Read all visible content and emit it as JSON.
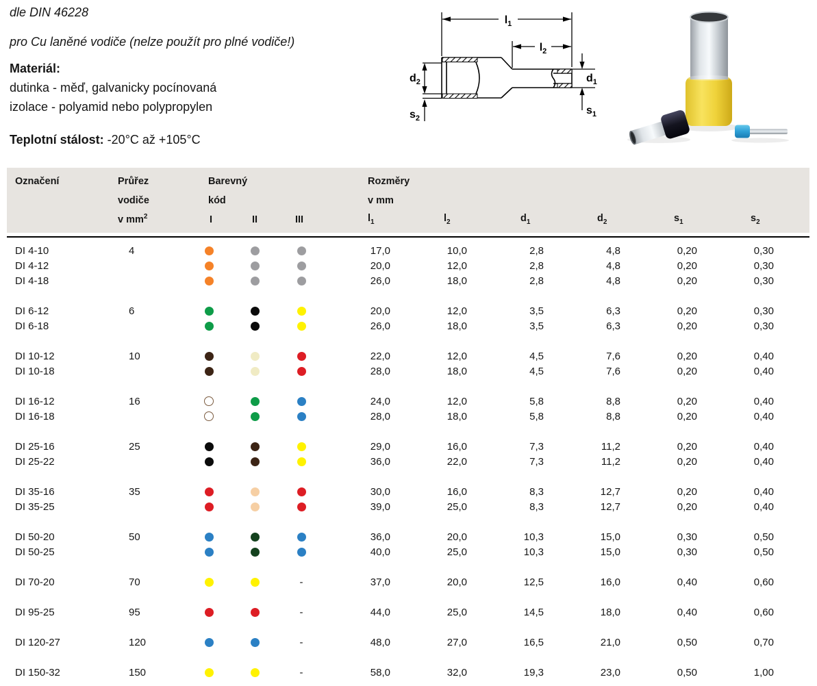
{
  "page": {
    "din_note": "dle DIN 46228",
    "usage_note": "pro Cu laněné vodiče (nelze použít pro plné vodiče!)",
    "material_label": "Materiál:",
    "material_line1": "dutinka - měď, galvanicky pocínovaná",
    "material_line2": "izolace - polyamid nebo polypropylen",
    "temp_label": "Teplotní stálost:",
    "temp_value": " -20°C až +105°C"
  },
  "diagram": {
    "labels": {
      "l1": "l_1",
      "l2": "l_2",
      "d1": "d_1",
      "d2": "d_2",
      "s1": "s_1",
      "s2": "s_2"
    }
  },
  "table": {
    "header": {
      "col_designation": "Označení",
      "col_cross_lines": [
        "Průřez",
        "vodiče",
        "v mm^2"
      ],
      "col_color_lines": [
        "Barevný",
        "kód"
      ],
      "col_color_sub": [
        "I",
        "II",
        "III"
      ],
      "col_dims_lines": [
        "Rozměry",
        "v mm"
      ],
      "col_dims_sub": [
        "l_1",
        "l_2",
        "d_1",
        "d_2",
        "s_1",
        "s_2"
      ]
    },
    "dot_colors": {
      "orange": "#F58228",
      "gray": "#9D9DA0",
      "green": "#0E9C48",
      "black": "#0B0B0B",
      "yellow": "#FFF200",
      "darkbrown": "#3C2415",
      "ivory": "#F0EBC4",
      "red": "#DD1D24",
      "white": "#FFFFFF",
      "blue": "#2B80C4",
      "darkgreen": "#14421E",
      "beige": "#F6CFA4"
    },
    "groups": [
      {
        "cross": "4",
        "rows": [
          {
            "name": "DI 4-10",
            "colors": [
              "orange",
              "gray",
              "gray"
            ],
            "dims": [
              "17,0",
              "10,0",
              "2,8",
              "4,8",
              "0,20",
              "0,30"
            ]
          },
          {
            "name": "DI 4-12",
            "colors": [
              "orange",
              "gray",
              "gray"
            ],
            "dims": [
              "20,0",
              "12,0",
              "2,8",
              "4,8",
              "0,20",
              "0,30"
            ]
          },
          {
            "name": "DI 4-18",
            "colors": [
              "orange",
              "gray",
              "gray"
            ],
            "dims": [
              "26,0",
              "18,0",
              "2,8",
              "4,8",
              "0,20",
              "0,30"
            ]
          }
        ]
      },
      {
        "cross": "6",
        "rows": [
          {
            "name": "DI 6-12",
            "colors": [
              "green",
              "black",
              "yellow"
            ],
            "dims": [
              "20,0",
              "12,0",
              "3,5",
              "6,3",
              "0,20",
              "0,30"
            ]
          },
          {
            "name": "DI 6-18",
            "colors": [
              "green",
              "black",
              "yellow"
            ],
            "dims": [
              "26,0",
              "18,0",
              "3,5",
              "6,3",
              "0,20",
              "0,30"
            ]
          }
        ]
      },
      {
        "cross": "10",
        "rows": [
          {
            "name": "DI 10-12",
            "colors": [
              "darkbrown",
              "ivory",
              "red"
            ],
            "dims": [
              "22,0",
              "12,0",
              "4,5",
              "7,6",
              "0,20",
              "0,40"
            ]
          },
          {
            "name": "DI 10-18",
            "colors": [
              "darkbrown",
              "ivory",
              "red"
            ],
            "dims": [
              "28,0",
              "18,0",
              "4,5",
              "7,6",
              "0,20",
              "0,40"
            ]
          }
        ]
      },
      {
        "cross": "16",
        "rows": [
          {
            "name": "DI 16-12",
            "colors": [
              "white",
              "green",
              "blue"
            ],
            "dims": [
              "24,0",
              "12,0",
              "5,8",
              "8,8",
              "0,20",
              "0,40"
            ]
          },
          {
            "name": "DI 16-18",
            "colors": [
              "white",
              "green",
              "blue"
            ],
            "dims": [
              "28,0",
              "18,0",
              "5,8",
              "8,8",
              "0,20",
              "0,40"
            ]
          }
        ]
      },
      {
        "cross": "25",
        "rows": [
          {
            "name": "DI 25-16",
            "colors": [
              "black",
              "darkbrown",
              "yellow"
            ],
            "dims": [
              "29,0",
              "16,0",
              "7,3",
              "11,2",
              "0,20",
              "0,40"
            ]
          },
          {
            "name": "DI 25-22",
            "colors": [
              "black",
              "darkbrown",
              "yellow"
            ],
            "dims": [
              "36,0",
              "22,0",
              "7,3",
              "11,2",
              "0,20",
              "0,40"
            ]
          }
        ]
      },
      {
        "cross": "35",
        "rows": [
          {
            "name": "DI 35-16",
            "colors": [
              "red",
              "beige",
              "red"
            ],
            "dims": [
              "30,0",
              "16,0",
              "8,3",
              "12,7",
              "0,20",
              "0,40"
            ]
          },
          {
            "name": "DI 35-25",
            "colors": [
              "red",
              "beige",
              "red"
            ],
            "dims": [
              "39,0",
              "25,0",
              "8,3",
              "12,7",
              "0,20",
              "0,40"
            ]
          }
        ]
      },
      {
        "cross": "50",
        "rows": [
          {
            "name": "DI 50-20",
            "colors": [
              "blue",
              "darkgreen",
              "blue"
            ],
            "dims": [
              "36,0",
              "20,0",
              "10,3",
              "15,0",
              "0,30",
              "0,50"
            ]
          },
          {
            "name": "DI 50-25",
            "colors": [
              "blue",
              "darkgreen",
              "blue"
            ],
            "dims": [
              "40,0",
              "25,0",
              "10,3",
              "15,0",
              "0,30",
              "0,50"
            ]
          }
        ]
      },
      {
        "cross": "70",
        "rows": [
          {
            "name": "DI 70-20",
            "colors": [
              "yellow",
              "yellow",
              "-"
            ],
            "dims": [
              "37,0",
              "20,0",
              "12,5",
              "16,0",
              "0,40",
              "0,60"
            ]
          }
        ]
      },
      {
        "cross": "95",
        "rows": [
          {
            "name": "DI 95-25",
            "colors": [
              "red",
              "red",
              "-"
            ],
            "dims": [
              "44,0",
              "25,0",
              "14,5",
              "18,0",
              "0,40",
              "0,60"
            ]
          }
        ]
      },
      {
        "cross": "120",
        "rows": [
          {
            "name": "DI 120-27",
            "colors": [
              "blue",
              "blue",
              "-"
            ],
            "dims": [
              "48,0",
              "27,0",
              "16,5",
              "21,0",
              "0,50",
              "0,70"
            ]
          }
        ]
      },
      {
        "cross": "150",
        "rows": [
          {
            "name": "DI 150-32",
            "colors": [
              "yellow",
              "yellow",
              "-"
            ],
            "dims": [
              "58,0",
              "32,0",
              "19,3",
              "23,0",
              "0,50",
              "1,00"
            ]
          }
        ]
      }
    ]
  }
}
